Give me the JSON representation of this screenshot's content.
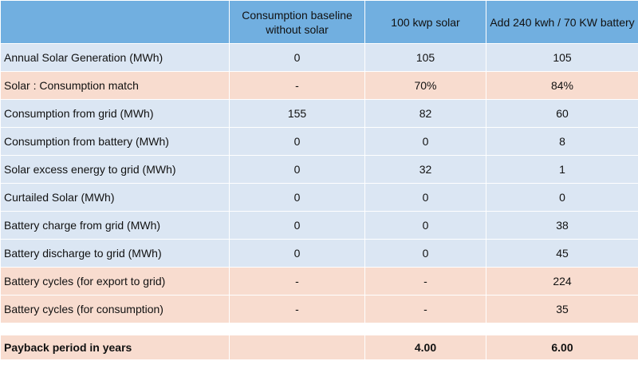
{
  "header": [
    "Consumption baseline without solar",
    "100 kwp solar",
    "Add 240 kwh / 70 KW battery"
  ],
  "rows": [
    {
      "label": "Annual Solar Generation (MWh)",
      "cells": [
        "0",
        "105",
        "105"
      ],
      "shade": "blue"
    },
    {
      "label": "Solar : Consumption match",
      "cells": [
        "-",
        "70%",
        "84%"
      ],
      "shade": "peach"
    },
    {
      "label": "Consumption from grid (MWh)",
      "cells": [
        "155",
        "82",
        "60"
      ],
      "shade": "blue"
    },
    {
      "label": "Consumption from battery (MWh)",
      "cells": [
        "0",
        "0",
        "8"
      ],
      "shade": "blue"
    },
    {
      "label": "Solar excess energy to grid (MWh)",
      "cells": [
        "0",
        "32",
        "1"
      ],
      "shade": "blue"
    },
    {
      "label": "Curtailed Solar (MWh)",
      "cells": [
        "0",
        "0",
        "0"
      ],
      "shade": "blue"
    },
    {
      "label": "Battery charge from grid (MWh)",
      "cells": [
        "0",
        "0",
        "38"
      ],
      "shade": "blue"
    },
    {
      "label": "Battery discharge to grid (MWh)",
      "cells": [
        "0",
        "0",
        "45"
      ],
      "shade": "blue"
    },
    {
      "label": "Battery cycles (for export to grid)",
      "cells": [
        "-",
        "-",
        "224"
      ],
      "shade": "peach"
    },
    {
      "label": "Battery cycles (for consumption)",
      "cells": [
        "-",
        "-",
        "35"
      ],
      "shade": "peach"
    }
  ],
  "payback": {
    "label": "Payback period in years",
    "cells": [
      null,
      "4.00",
      "6.00"
    ]
  }
}
